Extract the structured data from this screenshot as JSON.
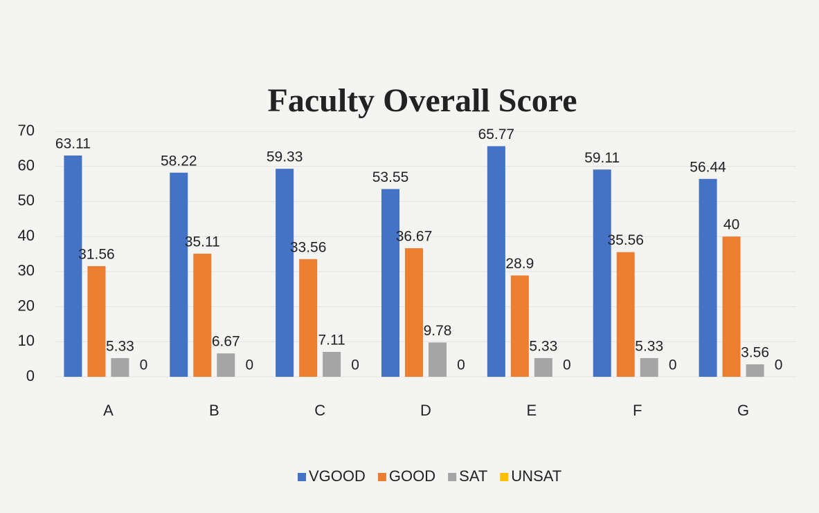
{
  "chart_data": {
    "type": "bar",
    "title": "Faculty Overall Score",
    "categories": [
      "A",
      "B",
      "C",
      "D",
      "E",
      "F",
      "G"
    ],
    "series": [
      {
        "name": "VGOOD",
        "color": "#4472c4",
        "values": [
          63.11,
          58.22,
          59.33,
          53.55,
          65.77,
          59.11,
          56.44
        ]
      },
      {
        "name": "GOOD",
        "color": "#ed7d31",
        "values": [
          31.56,
          35.11,
          33.56,
          36.67,
          28.9,
          35.56,
          40
        ]
      },
      {
        "name": "SAT",
        "color": "#a5a5a5",
        "values": [
          5.33,
          6.67,
          7.11,
          9.78,
          5.33,
          5.33,
          3.56
        ]
      },
      {
        "name": "UNSAT",
        "color": "#ffc000",
        "values": [
          0,
          0,
          0,
          0,
          0,
          0,
          0
        ]
      }
    ],
    "ylim": [
      0,
      70
    ],
    "yticks": [
      0,
      10,
      20,
      30,
      40,
      50,
      60,
      70
    ],
    "grid": true,
    "legend": "bottom"
  }
}
